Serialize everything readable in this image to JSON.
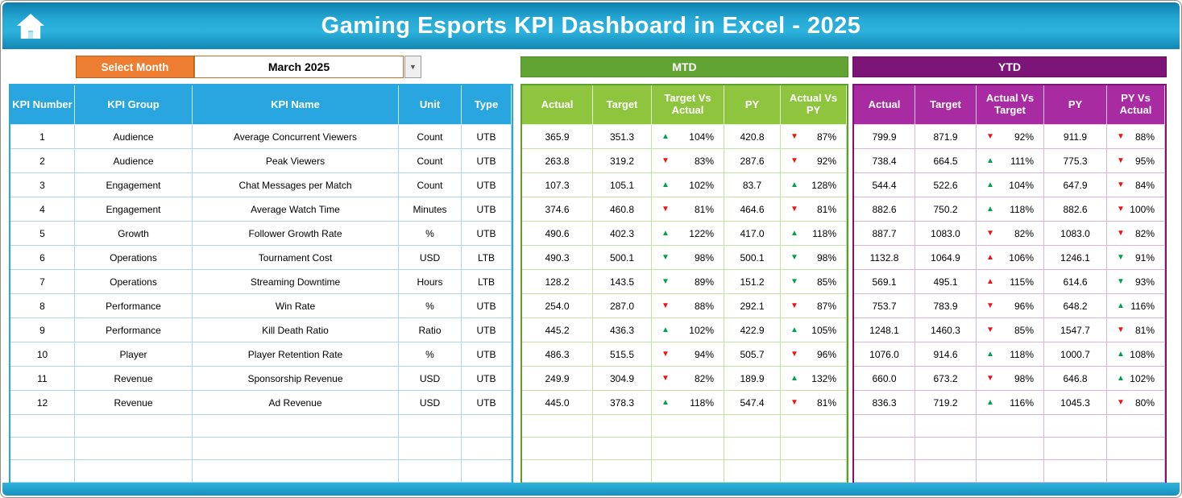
{
  "header": {
    "title": "Gaming Esports KPI Dashboard in Excel - 2025"
  },
  "controls": {
    "select_month_label": "Select Month",
    "selected_month": "March 2025"
  },
  "sections": {
    "mtd_label": "MTD",
    "ytd_label": "YTD"
  },
  "colors": {
    "banner_teal": "#1e9fcb",
    "select_month_orange": "#ED7D31",
    "kpi_header_blue": "#29a6e0",
    "mtd_bar_green": "#61a434",
    "mtd_header_green": "#8fc43e",
    "ytd_bar_purple": "#7d1578",
    "ytd_header_purple": "#a92ba2",
    "arrow_green": "#00a14b",
    "arrow_red": "#ee1111"
  },
  "kpi_table": {
    "headers": [
      "KPI Number",
      "KPI Group",
      "KPI Name",
      "Unit",
      "Type"
    ],
    "mtd_headers": [
      "Actual",
      "Target",
      "Target Vs Actual",
      "PY",
      "Actual Vs PY"
    ],
    "ytd_headers": [
      "Actual",
      "Target",
      "Actual Vs Target",
      "PY",
      "PY Vs Actual"
    ],
    "empty_row_count": 3,
    "rows": [
      {
        "n": "1",
        "group": "Audience",
        "name": "Average Concurrent Viewers",
        "unit": "Count",
        "type": "UTB",
        "mtd": {
          "actual": "365.9",
          "target": "351.3",
          "tva": {
            "a": "up",
            "c": "green",
            "v": "104%"
          },
          "py": "420.8",
          "avpy": {
            "a": "down",
            "c": "red",
            "v": "87%"
          }
        },
        "ytd": {
          "actual": "799.9",
          "target": "871.9",
          "avt": {
            "a": "down",
            "c": "red",
            "v": "92%"
          },
          "py": "911.9",
          "pyva": {
            "a": "down",
            "c": "red",
            "v": "88%"
          }
        }
      },
      {
        "n": "2",
        "group": "Audience",
        "name": "Peak Viewers",
        "unit": "Count",
        "type": "UTB",
        "mtd": {
          "actual": "263.8",
          "target": "319.2",
          "tva": {
            "a": "down",
            "c": "red",
            "v": "83%"
          },
          "py": "287.6",
          "avpy": {
            "a": "down",
            "c": "red",
            "v": "92%"
          }
        },
        "ytd": {
          "actual": "738.4",
          "target": "664.5",
          "avt": {
            "a": "up",
            "c": "green",
            "v": "111%"
          },
          "py": "775.3",
          "pyva": {
            "a": "down",
            "c": "red",
            "v": "95%"
          }
        }
      },
      {
        "n": "3",
        "group": "Engagement",
        "name": "Chat Messages per Match",
        "unit": "Count",
        "type": "UTB",
        "mtd": {
          "actual": "107.3",
          "target": "105.1",
          "tva": {
            "a": "up",
            "c": "green",
            "v": "102%"
          },
          "py": "83.7",
          "avpy": {
            "a": "up",
            "c": "green",
            "v": "128%"
          }
        },
        "ytd": {
          "actual": "544.4",
          "target": "522.6",
          "avt": {
            "a": "up",
            "c": "green",
            "v": "104%"
          },
          "py": "647.9",
          "pyva": {
            "a": "down",
            "c": "red",
            "v": "84%"
          }
        }
      },
      {
        "n": "4",
        "group": "Engagement",
        "name": "Average Watch Time",
        "unit": "Minutes",
        "type": "UTB",
        "mtd": {
          "actual": "374.6",
          "target": "460.8",
          "tva": {
            "a": "down",
            "c": "red",
            "v": "81%"
          },
          "py": "464.6",
          "avpy": {
            "a": "down",
            "c": "red",
            "v": "81%"
          }
        },
        "ytd": {
          "actual": "882.6",
          "target": "750.2",
          "avt": {
            "a": "up",
            "c": "green",
            "v": "118%"
          },
          "py": "882.6",
          "pyva": {
            "a": "down",
            "c": "red",
            "v": "100%"
          }
        }
      },
      {
        "n": "5",
        "group": "Growth",
        "name": "Follower Growth Rate",
        "unit": "%",
        "type": "UTB",
        "mtd": {
          "actual": "490.6",
          "target": "402.3",
          "tva": {
            "a": "up",
            "c": "green",
            "v": "122%"
          },
          "py": "417.0",
          "avpy": {
            "a": "up",
            "c": "green",
            "v": "118%"
          }
        },
        "ytd": {
          "actual": "887.7",
          "target": "1083.0",
          "avt": {
            "a": "down",
            "c": "red",
            "v": "82%"
          },
          "py": "1083.0",
          "pyva": {
            "a": "down",
            "c": "red",
            "v": "82%"
          }
        }
      },
      {
        "n": "6",
        "group": "Operations",
        "name": "Tournament Cost",
        "unit": "USD",
        "type": "LTB",
        "mtd": {
          "actual": "490.3",
          "target": "500.1",
          "tva": {
            "a": "down",
            "c": "green",
            "v": "98%"
          },
          "py": "500.1",
          "avpy": {
            "a": "down",
            "c": "green",
            "v": "98%"
          }
        },
        "ytd": {
          "actual": "1132.8",
          "target": "1064.9",
          "avt": {
            "a": "up",
            "c": "red",
            "v": "106%"
          },
          "py": "1246.1",
          "pyva": {
            "a": "down",
            "c": "green",
            "v": "91%"
          }
        }
      },
      {
        "n": "7",
        "group": "Operations",
        "name": "Streaming Downtime",
        "unit": "Hours",
        "type": "LTB",
        "mtd": {
          "actual": "128.2",
          "target": "143.5",
          "tva": {
            "a": "down",
            "c": "green",
            "v": "89%"
          },
          "py": "151.2",
          "avpy": {
            "a": "down",
            "c": "green",
            "v": "85%"
          }
        },
        "ytd": {
          "actual": "569.1",
          "target": "495.1",
          "avt": {
            "a": "up",
            "c": "red",
            "v": "115%"
          },
          "py": "614.6",
          "pyva": {
            "a": "down",
            "c": "green",
            "v": "93%"
          }
        }
      },
      {
        "n": "8",
        "group": "Performance",
        "name": "Win Rate",
        "unit": "%",
        "type": "UTB",
        "mtd": {
          "actual": "254.0",
          "target": "287.0",
          "tva": {
            "a": "down",
            "c": "red",
            "v": "88%"
          },
          "py": "292.1",
          "avpy": {
            "a": "down",
            "c": "red",
            "v": "87%"
          }
        },
        "ytd": {
          "actual": "753.7",
          "target": "783.9",
          "avt": {
            "a": "down",
            "c": "red",
            "v": "96%"
          },
          "py": "648.2",
          "pyva": {
            "a": "up",
            "c": "green",
            "v": "116%"
          }
        }
      },
      {
        "n": "9",
        "group": "Performance",
        "name": "Kill Death Ratio",
        "unit": "Ratio",
        "type": "UTB",
        "mtd": {
          "actual": "445.2",
          "target": "436.3",
          "tva": {
            "a": "up",
            "c": "green",
            "v": "102%"
          },
          "py": "422.9",
          "avpy": {
            "a": "up",
            "c": "green",
            "v": "105%"
          }
        },
        "ytd": {
          "actual": "1248.1",
          "target": "1460.3",
          "avt": {
            "a": "down",
            "c": "red",
            "v": "85%"
          },
          "py": "1547.7",
          "pyva": {
            "a": "down",
            "c": "red",
            "v": "81%"
          }
        }
      },
      {
        "n": "10",
        "group": "Player",
        "name": "Player Retention Rate",
        "unit": "%",
        "type": "UTB",
        "mtd": {
          "actual": "486.3",
          "target": "515.5",
          "tva": {
            "a": "down",
            "c": "red",
            "v": "94%"
          },
          "py": "505.7",
          "avpy": {
            "a": "down",
            "c": "red",
            "v": "96%"
          }
        },
        "ytd": {
          "actual": "1076.0",
          "target": "914.6",
          "avt": {
            "a": "up",
            "c": "green",
            "v": "118%"
          },
          "py": "1000.7",
          "pyva": {
            "a": "up",
            "c": "green",
            "v": "108%"
          }
        }
      },
      {
        "n": "11",
        "group": "Revenue",
        "name": "Sponsorship Revenue",
        "unit": "USD",
        "type": "UTB",
        "mtd": {
          "actual": "249.9",
          "target": "304.9",
          "tva": {
            "a": "down",
            "c": "red",
            "v": "82%"
          },
          "py": "189.9",
          "avpy": {
            "a": "up",
            "c": "green",
            "v": "132%"
          }
        },
        "ytd": {
          "actual": "660.0",
          "target": "673.2",
          "avt": {
            "a": "down",
            "c": "red",
            "v": "98%"
          },
          "py": "646.8",
          "pyva": {
            "a": "up",
            "c": "green",
            "v": "102%"
          }
        }
      },
      {
        "n": "12",
        "group": "Revenue",
        "name": "Ad Revenue",
        "unit": "USD",
        "type": "UTB",
        "mtd": {
          "actual": "445.0",
          "target": "378.3",
          "tva": {
            "a": "up",
            "c": "green",
            "v": "118%"
          },
          "py": "547.4",
          "avpy": {
            "a": "down",
            "c": "red",
            "v": "81%"
          }
        },
        "ytd": {
          "actual": "836.3",
          "target": "719.2",
          "avt": {
            "a": "up",
            "c": "green",
            "v": "116%"
          },
          "py": "1045.3",
          "pyva": {
            "a": "down",
            "c": "red",
            "v": "80%"
          }
        }
      }
    ]
  }
}
